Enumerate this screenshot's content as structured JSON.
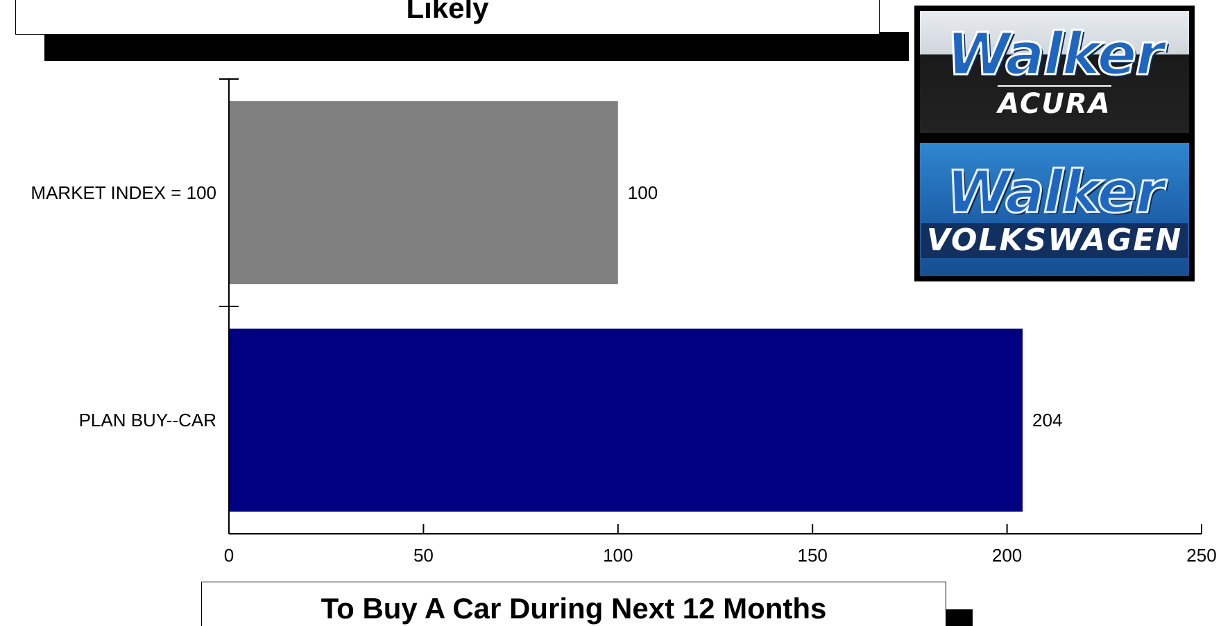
{
  "header": {
    "title": "Likely"
  },
  "footer": {
    "subtitle": "To Buy A Car During Next 12 Months"
  },
  "logos": [
    {
      "name": "Walker",
      "subtitle": "ACURA"
    },
    {
      "name": "Walker",
      "subtitle": "VOLKSWAGEN"
    }
  ],
  "chart_data": {
    "type": "bar",
    "orientation": "horizontal",
    "title": "",
    "xlabel": "",
    "ylabel": "",
    "categories": [
      "MARKET INDEX = 100",
      "PLAN BUY--CAR"
    ],
    "values": [
      100,
      204
    ],
    "value_labels": [
      "100",
      "204"
    ],
    "colors": [
      "#808080",
      "#000080"
    ],
    "xlim": [
      0,
      250
    ],
    "xticks": [
      0,
      50,
      100,
      150,
      200,
      250
    ],
    "grid": false,
    "legend": "none"
  }
}
